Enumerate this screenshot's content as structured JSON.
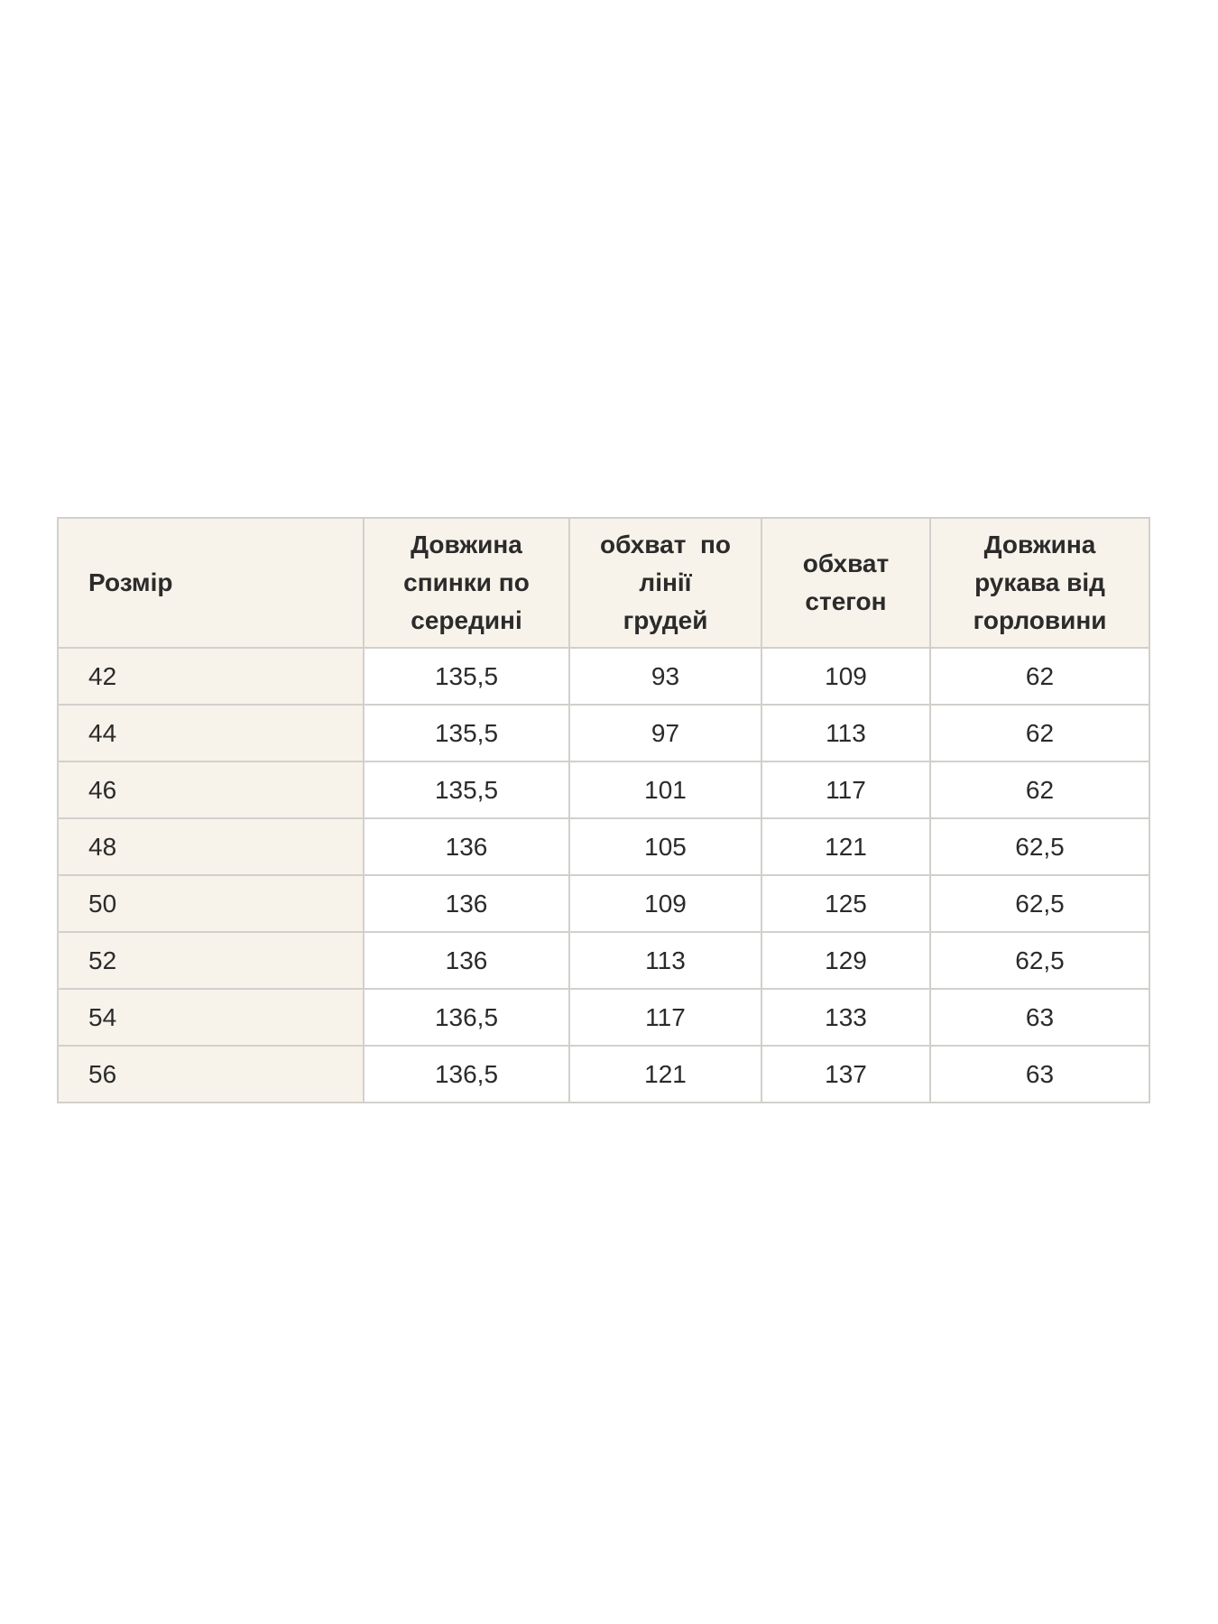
{
  "chart_data": {
    "type": "table",
    "title": "",
    "headers": [
      "Розмір",
      "Довжина спинки по середині",
      "обхват по лінії грудей",
      "обхват стегон",
      "Довжина рукава від горловини"
    ],
    "rows": [
      [
        "42",
        "135,5",
        "93",
        "109",
        "62"
      ],
      [
        "44",
        "135,5",
        "97",
        "113",
        "62"
      ],
      [
        "46",
        "135,5",
        "101",
        "117",
        "62"
      ],
      [
        "48",
        "136",
        "105",
        "121",
        "62,5"
      ],
      [
        "50",
        "136",
        "109",
        "125",
        "62,5"
      ],
      [
        "52",
        "136",
        "113",
        "129",
        "62,5"
      ],
      [
        "54",
        "136,5",
        "117",
        "133",
        "63"
      ],
      [
        "56",
        "136,5",
        "121",
        "137",
        "63"
      ]
    ]
  },
  "table": {
    "header_display": [
      "Розмір",
      "Довжина\nспинки по\nсередині",
      "обхват  по\nлінії\nгрудей",
      "обхват\nстегон",
      "Довжина\nрукава від\nгорловини"
    ],
    "colors": {
      "header_bg": "#f7f3ea",
      "first_col_bg": "#f7f3ea",
      "cell_bg": "#ffffff",
      "border": "#d2d0cc",
      "text": "#2b2b2b",
      "page_bg": "#ffffff"
    }
  }
}
